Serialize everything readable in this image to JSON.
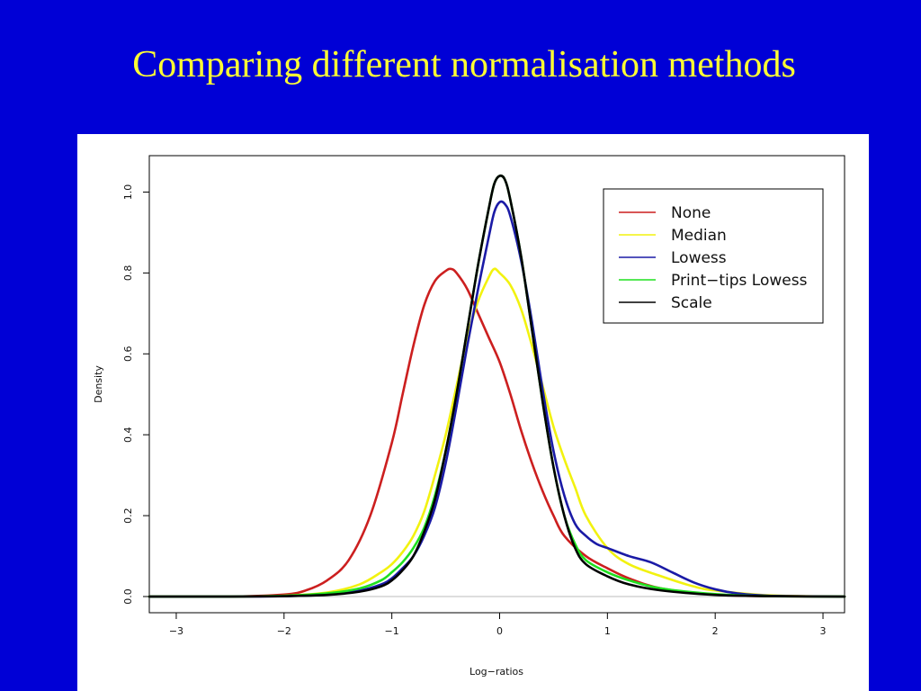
{
  "slide": {
    "title": "Comparing different normalisation methods",
    "background_color": "#0000d6",
    "title_color": "#ffff33"
  },
  "chart_data": {
    "type": "line",
    "title": "",
    "xlabel": "Log−ratios",
    "ylabel": "Density",
    "xlim": [
      -3.25,
      3.2
    ],
    "ylim": [
      -0.04,
      1.09
    ],
    "x_ticks": [
      -3,
      -2,
      -1,
      0,
      1,
      2,
      3
    ],
    "x_tick_labels": [
      "−3",
      "−2",
      "−1",
      "0",
      "1",
      "2",
      "3"
    ],
    "y_ticks": [
      0.0,
      0.2,
      0.4,
      0.6,
      0.8,
      1.0
    ],
    "y_tick_labels": [
      "0.0",
      "0.2",
      "0.4",
      "0.6",
      "0.8",
      "1.0"
    ],
    "grid": false,
    "legend_position": "top-right",
    "baseline_y": 0,
    "series": [
      {
        "name": "None",
        "color": "#cc1f1f",
        "x": [
          -3.25,
          -2.5,
          -2.0,
          -1.8,
          -1.6,
          -1.4,
          -1.2,
          -1.0,
          -0.9,
          -0.8,
          -0.7,
          -0.6,
          -0.5,
          -0.45,
          -0.4,
          -0.3,
          -0.2,
          -0.1,
          0.0,
          0.1,
          0.2,
          0.3,
          0.4,
          0.5,
          0.6,
          0.8,
          1.0,
          1.2,
          1.5,
          2.0,
          2.5,
          3.2
        ],
        "y": [
          0.0,
          0.0,
          0.005,
          0.015,
          0.04,
          0.09,
          0.2,
          0.38,
          0.5,
          0.62,
          0.72,
          0.78,
          0.805,
          0.81,
          0.8,
          0.76,
          0.7,
          0.64,
          0.58,
          0.5,
          0.41,
          0.33,
          0.26,
          0.2,
          0.15,
          0.1,
          0.07,
          0.045,
          0.02,
          0.005,
          0.001,
          0.0
        ]
      },
      {
        "name": "Median",
        "color": "#f2f20f",
        "x": [
          -3.25,
          -2.5,
          -2.0,
          -1.6,
          -1.3,
          -1.1,
          -1.0,
          -0.9,
          -0.8,
          -0.7,
          -0.6,
          -0.5,
          -0.4,
          -0.3,
          -0.2,
          -0.1,
          -0.05,
          0.0,
          0.1,
          0.2,
          0.3,
          0.4,
          0.5,
          0.6,
          0.7,
          0.8,
          1.0,
          1.2,
          1.5,
          1.8,
          2.0,
          2.5,
          3.2
        ],
        "y": [
          0.0,
          0.0,
          0.002,
          0.01,
          0.03,
          0.06,
          0.08,
          0.11,
          0.15,
          0.21,
          0.3,
          0.4,
          0.52,
          0.64,
          0.73,
          0.79,
          0.81,
          0.8,
          0.77,
          0.71,
          0.62,
          0.52,
          0.42,
          0.34,
          0.27,
          0.2,
          0.12,
          0.08,
          0.05,
          0.025,
          0.015,
          0.003,
          0.0
        ]
      },
      {
        "name": "Lowess",
        "color": "#1a1aa6",
        "x": [
          -3.25,
          -2.5,
          -2.0,
          -1.6,
          -1.3,
          -1.1,
          -1.0,
          -0.9,
          -0.8,
          -0.7,
          -0.6,
          -0.5,
          -0.4,
          -0.3,
          -0.2,
          -0.1,
          -0.05,
          0.0,
          0.05,
          0.1,
          0.2,
          0.3,
          0.4,
          0.5,
          0.6,
          0.7,
          0.8,
          0.9,
          1.0,
          1.2,
          1.4,
          1.6,
          1.8,
          2.0,
          2.2,
          2.5,
          3.2
        ],
        "y": [
          0.0,
          0.0,
          0.001,
          0.005,
          0.015,
          0.03,
          0.045,
          0.07,
          0.1,
          0.15,
          0.22,
          0.33,
          0.47,
          0.62,
          0.76,
          0.89,
          0.95,
          0.975,
          0.97,
          0.94,
          0.83,
          0.68,
          0.51,
          0.36,
          0.25,
          0.18,
          0.15,
          0.13,
          0.12,
          0.1,
          0.085,
          0.06,
          0.035,
          0.018,
          0.008,
          0.002,
          0.0
        ]
      },
      {
        "name": "Print−tips Lowess",
        "color": "#1fe01f",
        "x": [
          -3.25,
          -2.5,
          -2.0,
          -1.6,
          -1.3,
          -1.1,
          -1.0,
          -0.9,
          -0.8,
          -0.7,
          -0.6,
          -0.5,
          -0.4,
          -0.3,
          -0.2,
          -0.1,
          -0.05,
          0.0,
          0.05,
          0.1,
          0.2,
          0.3,
          0.4,
          0.5,
          0.6,
          0.7,
          0.8,
          1.0,
          1.2,
          1.5,
          2.0,
          2.5,
          3.2
        ],
        "y": [
          0.0,
          0.0,
          0.002,
          0.008,
          0.02,
          0.04,
          0.06,
          0.085,
          0.12,
          0.17,
          0.25,
          0.36,
          0.5,
          0.66,
          0.82,
          0.96,
          1.02,
          1.04,
          1.03,
          0.98,
          0.84,
          0.66,
          0.48,
          0.32,
          0.2,
          0.13,
          0.09,
          0.06,
          0.04,
          0.02,
          0.006,
          0.001,
          0.0
        ]
      },
      {
        "name": "Scale",
        "color": "#000000",
        "x": [
          -3.25,
          -2.5,
          -2.0,
          -1.6,
          -1.3,
          -1.1,
          -1.0,
          -0.9,
          -0.8,
          -0.7,
          -0.6,
          -0.5,
          -0.4,
          -0.3,
          -0.2,
          -0.1,
          -0.05,
          0.0,
          0.05,
          0.1,
          0.2,
          0.3,
          0.4,
          0.5,
          0.6,
          0.7,
          0.8,
          1.0,
          1.2,
          1.5,
          2.0,
          2.5,
          3.2
        ],
        "y": [
          0.0,
          0.0,
          0.001,
          0.004,
          0.012,
          0.025,
          0.04,
          0.065,
          0.1,
          0.16,
          0.24,
          0.36,
          0.5,
          0.66,
          0.82,
          0.96,
          1.02,
          1.04,
          1.03,
          0.98,
          0.84,
          0.66,
          0.48,
          0.32,
          0.2,
          0.12,
          0.08,
          0.05,
          0.03,
          0.015,
          0.004,
          0.001,
          0.0
        ]
      }
    ]
  }
}
